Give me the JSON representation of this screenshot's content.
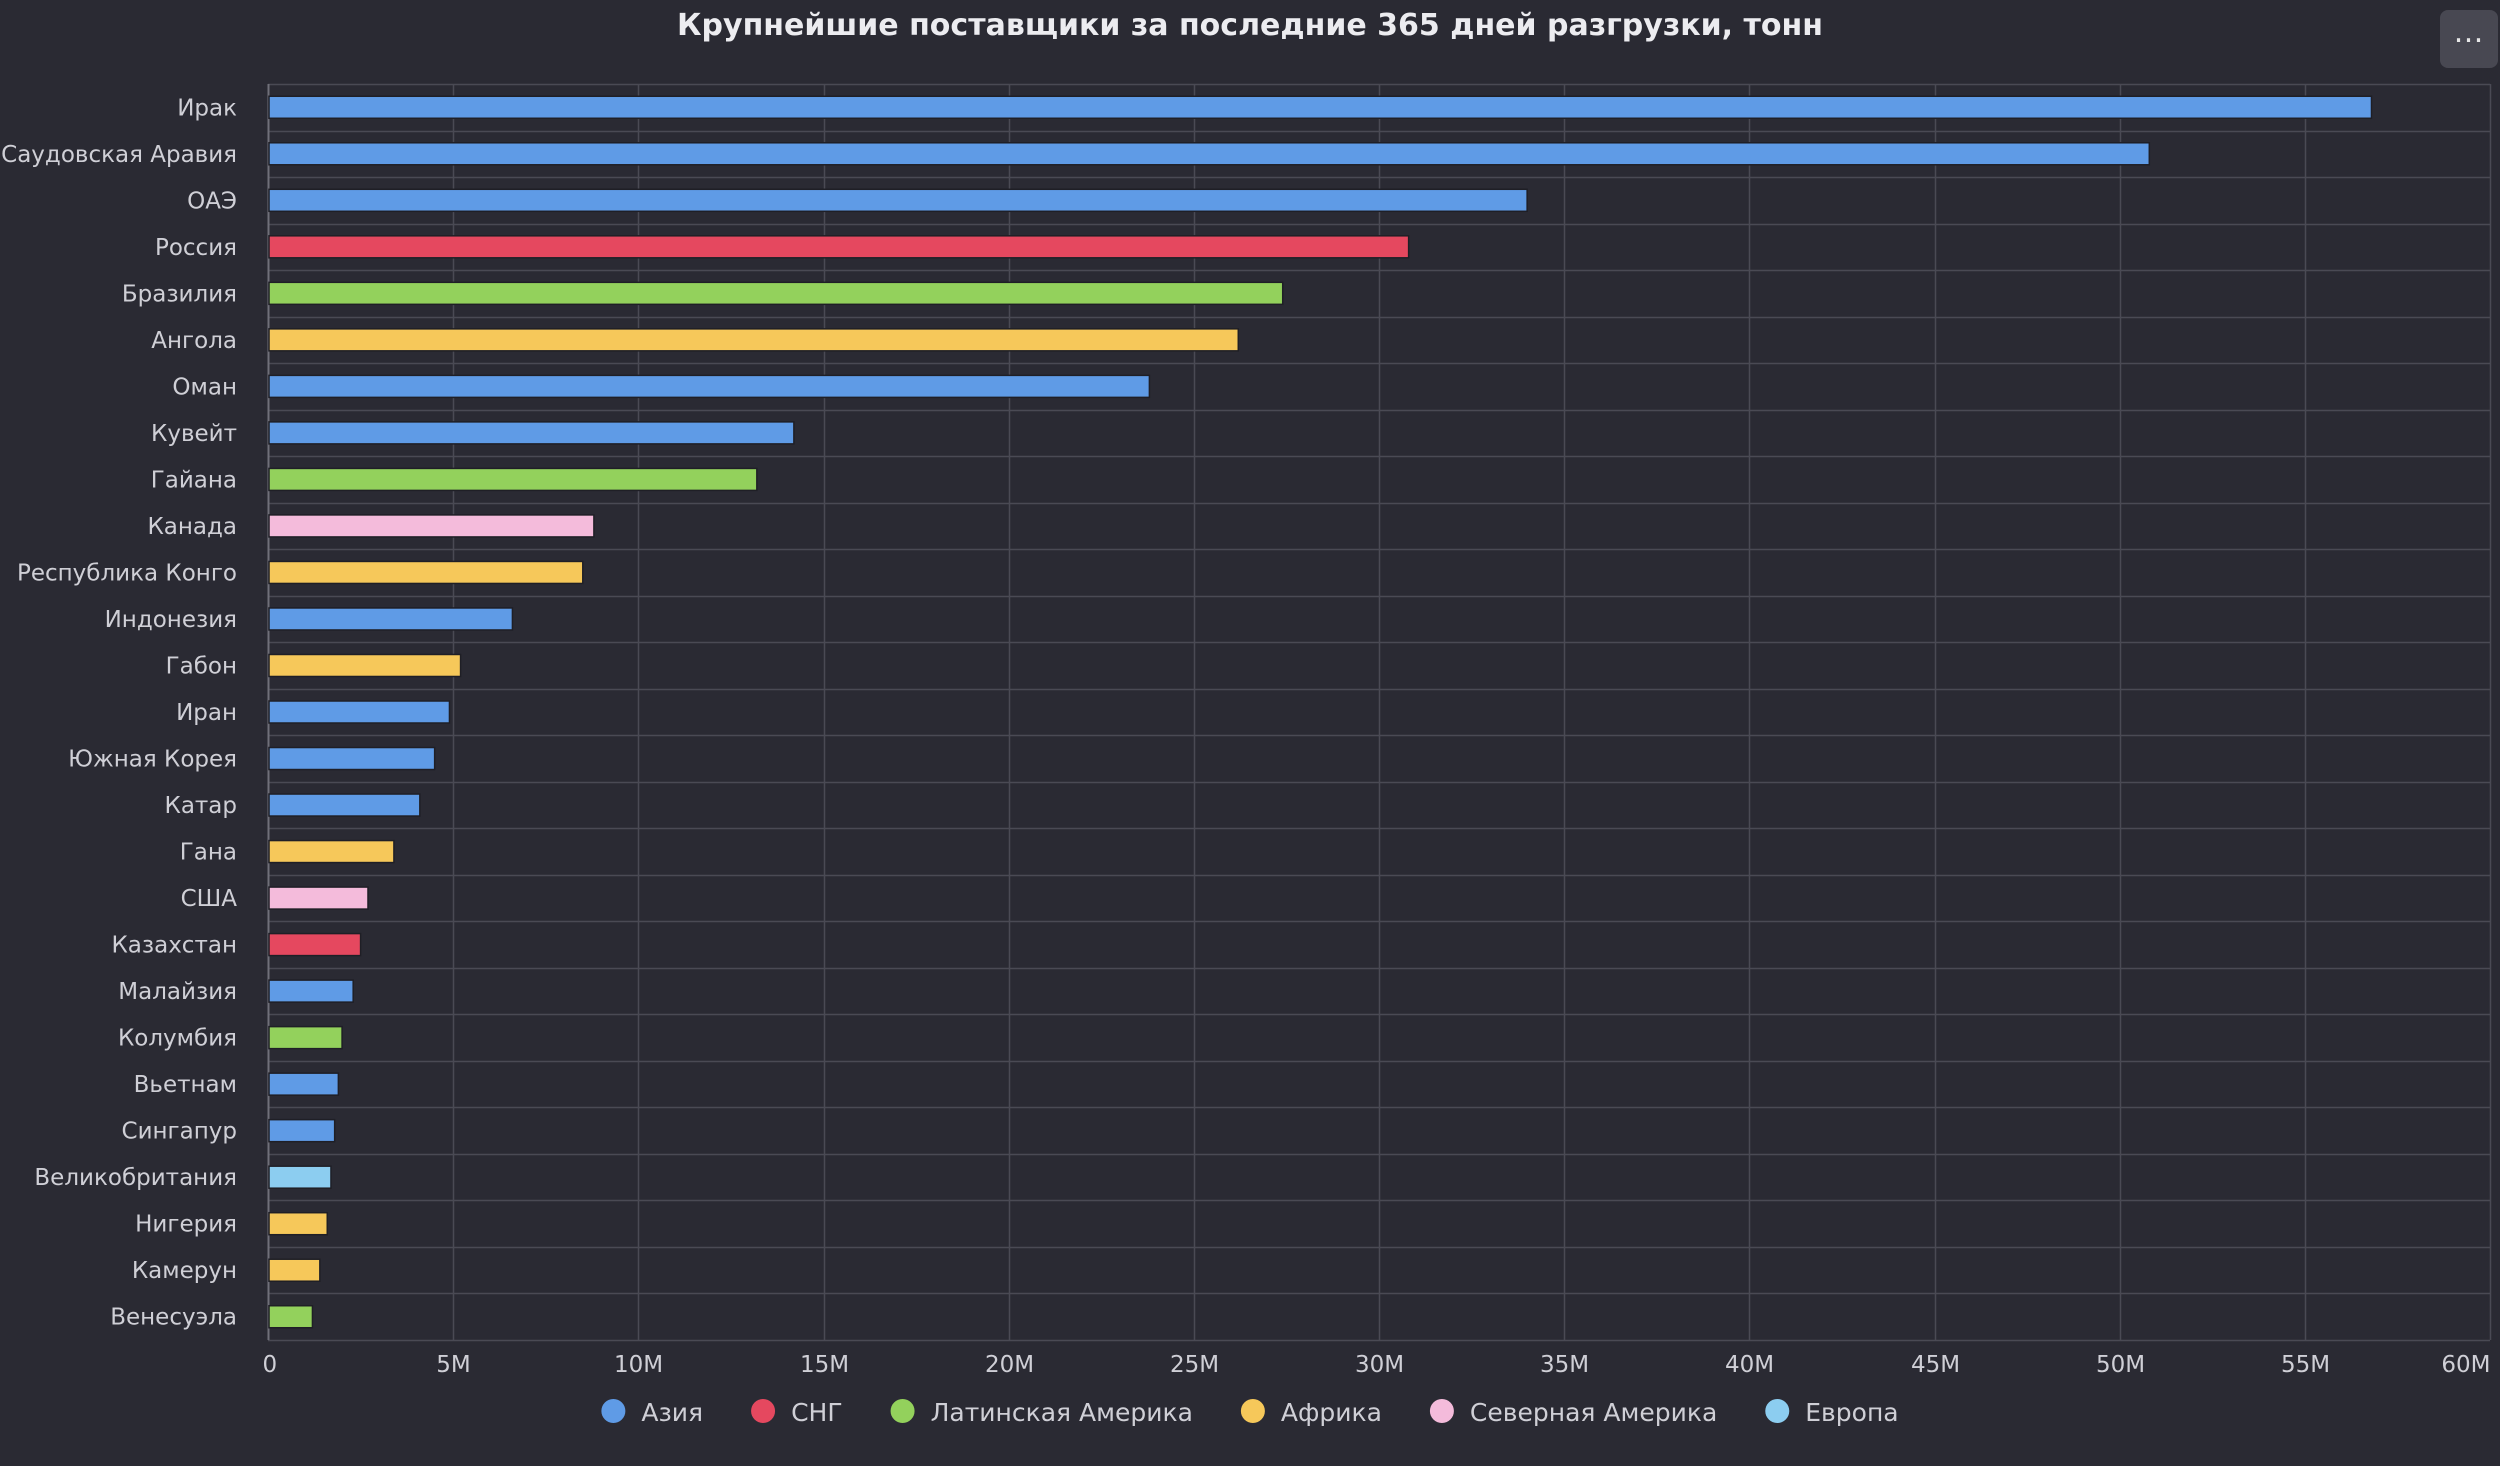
{
  "colors": {
    "background": "#2a2a33",
    "grid": "#4a4a54",
    "axis": "#70707a",
    "text": "#cfcfd6",
    "title": "#ececf0"
  },
  "menu": {
    "icon": "ellipsis-icon",
    "glyph": "…"
  },
  "chart_data": {
    "type": "bar",
    "orientation": "horizontal",
    "title": "Крупнейшие поставщики за последние 365 дней разгрузки, тонн",
    "xlabel": "",
    "ylabel": "",
    "xlim": [
      0,
      60000000
    ],
    "x_ticks": [
      0,
      5000000,
      10000000,
      15000000,
      20000000,
      25000000,
      30000000,
      35000000,
      40000000,
      45000000,
      50000000,
      55000000,
      60000000
    ],
    "x_tick_labels": [
      "0",
      "5M",
      "10M",
      "15M",
      "20M",
      "25M",
      "30M",
      "35M",
      "40M",
      "45M",
      "50M",
      "55M",
      "60M"
    ],
    "grid": true,
    "legend_position": "bottom-center",
    "legend": [
      {
        "key": "asia",
        "name": "Азия",
        "color": "#5f9be6"
      },
      {
        "key": "cis",
        "name": "СНГ",
        "color": "#e5485f"
      },
      {
        "key": "latam",
        "name": "Латинская Америка",
        "color": "#93d15c"
      },
      {
        "key": "africa",
        "name": "Африка",
        "color": "#f6c85a"
      },
      {
        "key": "namerica",
        "name": "Северная Америка",
        "color": "#f4bbdb"
      },
      {
        "key": "europe",
        "name": "Европа",
        "color": "#8ccdf0"
      }
    ],
    "categories": [
      "Ирак",
      "Саудовская Аравия",
      "ОАЭ",
      "Россия",
      "Бразилия",
      "Ангола",
      "Оман",
      "Кувейт",
      "Гайана",
      "Канада",
      "Республика Конго",
      "Индонезия",
      "Габон",
      "Иран",
      "Южная Корея",
      "Катар",
      "Гана",
      "США",
      "Казахстан",
      "Малайзия",
      "Колумбия",
      "Вьетнам",
      "Сингапур",
      "Великобритания",
      "Нигерия",
      "Камерун",
      "Венесуэла"
    ],
    "values": [
      56800000,
      50800000,
      34000000,
      30800000,
      27400000,
      26200000,
      23800000,
      14200000,
      13200000,
      8800000,
      8500000,
      6600000,
      5200000,
      4900000,
      4500000,
      4100000,
      3400000,
      2700000,
      2500000,
      2300000,
      2000000,
      1900000,
      1800000,
      1700000,
      1600000,
      1400000,
      1200000
    ],
    "regions": [
      "asia",
      "asia",
      "asia",
      "cis",
      "latam",
      "africa",
      "asia",
      "asia",
      "latam",
      "namerica",
      "africa",
      "asia",
      "africa",
      "asia",
      "asia",
      "asia",
      "africa",
      "namerica",
      "cis",
      "asia",
      "latam",
      "asia",
      "asia",
      "europe",
      "africa",
      "africa",
      "latam"
    ]
  }
}
